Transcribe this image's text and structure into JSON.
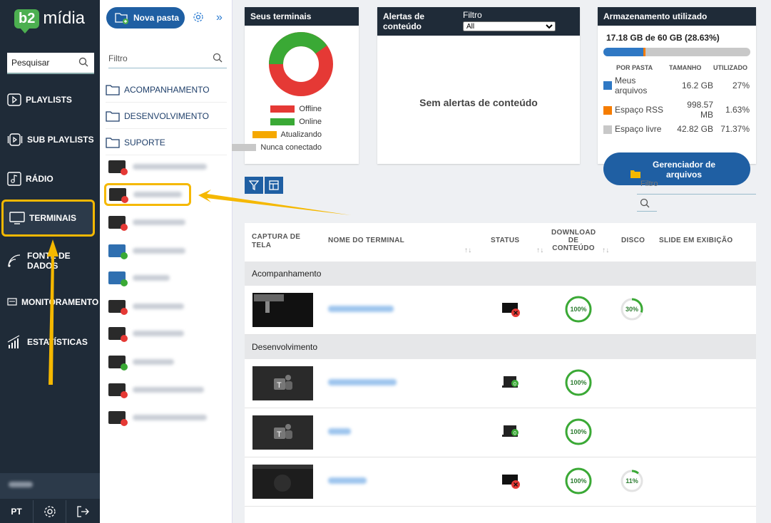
{
  "nav": {
    "logo_b2": "b2",
    "logo_midia": "mídia",
    "search_label": "Pesquisar",
    "items": [
      {
        "label": "PLAYLISTS",
        "icon": "playlist-icon"
      },
      {
        "label": "SUB PLAYLISTS",
        "icon": "sub-playlist-icon"
      },
      {
        "label": "RÁDIO",
        "icon": "radio-icon"
      },
      {
        "label": "TERMINAIS",
        "icon": "monitor-icon"
      },
      {
        "label": "FONTE DE DADOS",
        "icon": "data-source-icon"
      },
      {
        "label": "MONITORAMENTO",
        "icon": "monitoring-icon"
      },
      {
        "label": "ESTATÍSTICAS",
        "icon": "statistics-icon"
      }
    ],
    "lang": "PT"
  },
  "folders": {
    "new_folder_label": "Nova pasta",
    "filter_placeholder": "Filtro",
    "list": [
      "ACOMPANHAMENTO",
      "DESENVOLVIMENTO",
      "SUPORTE"
    ]
  },
  "cards": {
    "terminals_title": "Seus terminais",
    "terminal_legend": [
      {
        "label": "Offline",
        "color": "#e53935"
      },
      {
        "label": "Online",
        "color": "#3aa935"
      },
      {
        "label": "Atualizando",
        "color": "#f5a800"
      },
      {
        "label": "Nunca conectado",
        "color": "#c8c8c8"
      }
    ],
    "alerts_title": "Alertas de conteúdo",
    "alerts_filter_label": "Filtro",
    "alerts_filter_value": "All",
    "alerts_empty": "Sem alertas de conteúdo",
    "storage_title": "Armazenamento utilizado",
    "storage_summary": "17.18 GB de 60 GB (28.63%)",
    "storage_used_fraction": 0.2863,
    "storage_headers": [
      "POR PASTA",
      "TAMANHO",
      "UTILIZADO"
    ],
    "storage_rows": [
      {
        "label": "Meus arquivos",
        "size": "16.2 GB",
        "pct": "27%",
        "color": "#2f78c4"
      },
      {
        "label": "Espaço RSS",
        "size": "998.57 MB",
        "pct": "1.63%",
        "color": "#f57c00"
      },
      {
        "label": "Espaço livre",
        "size": "42.82 GB",
        "pct": "71.37%",
        "color": "#c8c8c8"
      }
    ],
    "file_manager_label": "Gerenciador de arquivos"
  },
  "table": {
    "filter_label": "Filtro",
    "headers": [
      "CAPTURA DE TELA",
      "NOME DO TERMINAL",
      "STATUS",
      "DOWNLOAD DE CONTEÚDO",
      "DISCO",
      "SLIDE EM EXIBIÇÃO"
    ],
    "groups": [
      {
        "name": "Acompanhamento",
        "rows": [
          {
            "download": "100%",
            "disk": "30%",
            "status": "offline"
          }
        ]
      },
      {
        "name": "Desenvolvimento",
        "rows": [
          {
            "download": "100%",
            "disk": "",
            "status": "online"
          },
          {
            "download": "100%",
            "disk": "",
            "status": "online"
          },
          {
            "download": "100%",
            "disk": "11%",
            "status": "offline"
          }
        ]
      }
    ]
  }
}
